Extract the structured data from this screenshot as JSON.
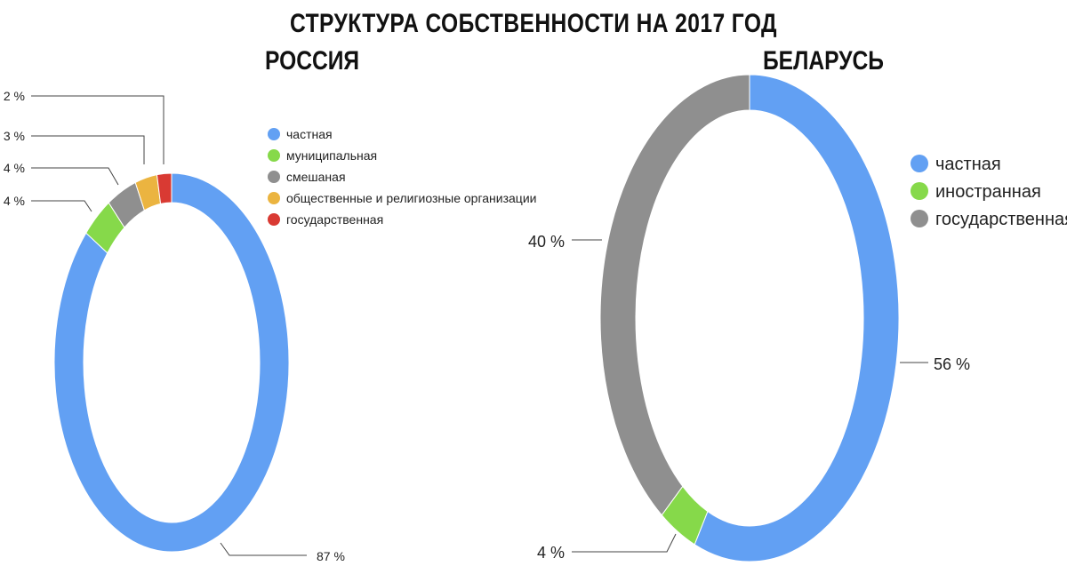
{
  "main_title": "СТРУКТУРА СОБСТВЕННОСТИ НА 2017 ГОД",
  "chart_data": [
    {
      "type": "pie",
      "title": "РОССИЯ",
      "categories": [
        "частная",
        "муниципальная",
        "смешаная",
        "общественные и религиозные организации",
        "государственная"
      ],
      "values": [
        87,
        4,
        4,
        3,
        2
      ],
      "labels": [
        "87 %",
        "4 %",
        "4 %",
        "3 %",
        "2 %"
      ],
      "colors": [
        "#62a0f3",
        "#86d94a",
        "#8f8f8f",
        "#ebb440",
        "#d93a33"
      ],
      "legend": "right"
    },
    {
      "type": "pie",
      "title": "БЕЛАРУСЬ",
      "categories": [
        "частная",
        "иностранная",
        "государственная"
      ],
      "values": [
        56,
        4,
        40
      ],
      "labels": [
        "56 %",
        "4 %",
        "40 %"
      ],
      "colors": [
        "#62a0f3",
        "#86d94a",
        "#8f8f8f"
      ],
      "legend": "right"
    }
  ]
}
